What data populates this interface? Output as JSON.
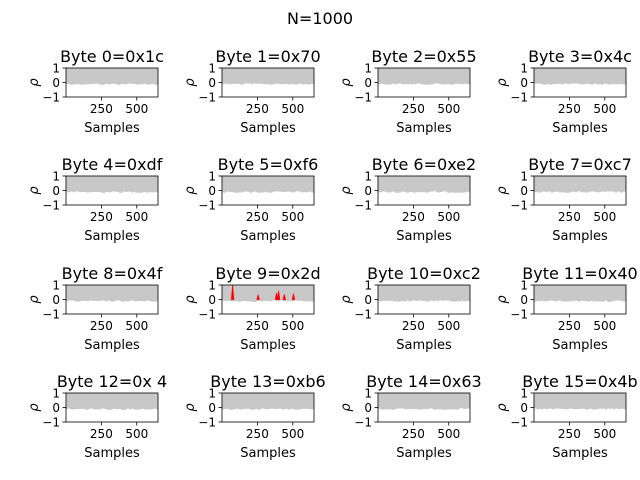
{
  "suptitle": "N=1000",
  "colors": {
    "band": "#c8c8c8",
    "highlight": "#ff0000",
    "axes": "#000000"
  },
  "chart_data": {
    "type": "line",
    "title": "N=1000",
    "layout": "4x4 grid of subplots",
    "xlabel": "Samples",
    "ylabel": "ρ",
    "xlim": [
      0,
      650
    ],
    "ylim": [
      -1,
      1
    ],
    "xticks": [
      250,
      500
    ],
    "yticks": [
      -1,
      0,
      1
    ],
    "grid": false,
    "subplots": [
      {
        "title": "Byte 0=0x1c",
        "highlight": []
      },
      {
        "title": "Byte 1=0x70",
        "highlight": []
      },
      {
        "title": "Byte 2=0x55",
        "highlight": []
      },
      {
        "title": "Byte 3=0x4c",
        "highlight": []
      },
      {
        "title": "Byte 4=0xdf",
        "highlight": []
      },
      {
        "title": "Byte 5=0xf6",
        "highlight": []
      },
      {
        "title": "Byte 6=0xe2",
        "highlight": []
      },
      {
        "title": "Byte 7=0xc7",
        "highlight": []
      },
      {
        "title": "Byte 8=0x4f",
        "highlight": []
      },
      {
        "title": "Byte 9=0x2d",
        "highlight": [
          {
            "x": 75,
            "y": 1.0
          },
          {
            "x": 255,
            "y": 0.3
          },
          {
            "x": 385,
            "y": 0.45
          },
          {
            "x": 400,
            "y": 0.6
          },
          {
            "x": 440,
            "y": 0.35
          },
          {
            "x": 505,
            "y": 0.4
          }
        ]
      },
      {
        "title": "Byte 10=0xc2",
        "highlight": []
      },
      {
        "title": "Byte 11=0x40",
        "highlight": []
      },
      {
        "title": "Byte 12=0x 4",
        "highlight": []
      },
      {
        "title": "Byte 13=0xb6",
        "highlight": []
      },
      {
        "title": "Byte 14=0x63",
        "highlight": []
      },
      {
        "title": "Byte 15=0x4b",
        "highlight": []
      }
    ]
  }
}
